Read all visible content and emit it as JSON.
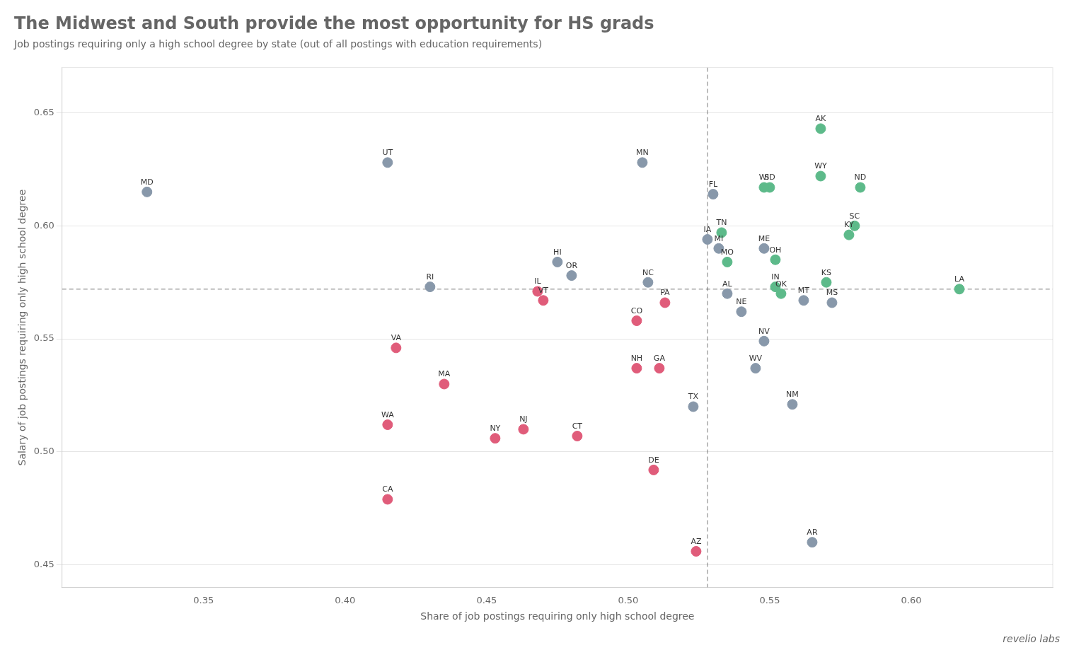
{
  "chart_data": {
    "type": "scatter",
    "title": "The Midwest and South provide the most opportunity for HS grads",
    "subtitle": "Job postings requiring only a high school degree by state (out of all postings with education requirements)",
    "xlabel": "Share of job postings requiring only high school degree",
    "ylabel": "Salary of job postings requiring only high school degree",
    "annotations": [
      "revelio labs"
    ],
    "hlines": [
      0.572
    ],
    "vlines": [
      0.528
    ],
    "point_labels": [
      "MD",
      "UT",
      "RI",
      "VA",
      "WA",
      "MA",
      "CA",
      "NY",
      "NJ",
      "CT",
      "IL",
      "VT",
      "HI",
      "OR",
      "MN",
      "CO",
      "NH",
      "GA",
      "NC",
      "PA",
      "DE",
      "TX",
      "AZ",
      "FL",
      "TN",
      "IA",
      "MI",
      "MO",
      "AL",
      "NE",
      "WV",
      "NV",
      "NM",
      "AR",
      "ME",
      "OH",
      "IN",
      "OK",
      "MT",
      "MS",
      "KS",
      "KY",
      "SC",
      "ND",
      "WY",
      "SD",
      "WI",
      "AK",
      "LA"
    ],
    "x": [
      0.33,
      0.415,
      0.43,
      0.418,
      0.415,
      0.435,
      0.415,
      0.453,
      0.463,
      0.482,
      0.468,
      0.47,
      0.475,
      0.48,
      0.505,
      0.503,
      0.503,
      0.511,
      0.507,
      0.513,
      0.509,
      0.523,
      0.524,
      0.53,
      0.533,
      0.528,
      0.532,
      0.535,
      0.535,
      0.54,
      0.545,
      0.548,
      0.558,
      0.565,
      0.548,
      0.552,
      0.552,
      0.554,
      0.562,
      0.572,
      0.57,
      0.578,
      0.58,
      0.582,
      0.568,
      0.55,
      0.548,
      0.568,
      0.617
    ],
    "values": [
      0.615,
      0.628,
      0.573,
      0.546,
      0.512,
      0.53,
      0.479,
      0.506,
      0.51,
      0.507,
      0.571,
      0.567,
      0.584,
      0.578,
      0.628,
      0.558,
      0.537,
      0.537,
      0.575,
      0.566,
      0.492,
      0.52,
      0.456,
      0.614,
      0.597,
      0.594,
      0.59,
      0.584,
      0.57,
      0.562,
      0.537,
      0.549,
      0.521,
      0.46,
      0.59,
      0.585,
      0.573,
      0.57,
      0.567,
      0.566,
      0.575,
      0.596,
      0.6,
      0.617,
      0.622,
      0.617,
      0.617,
      0.643,
      0.572
    ],
    "colors": [
      "#8898aa",
      "#8898aa",
      "#8898aa",
      "#e05c7a",
      "#e05c7a",
      "#e05c7a",
      "#e05c7a",
      "#e05c7a",
      "#e05c7a",
      "#e05c7a",
      "#e05c7a",
      "#e05c7a",
      "#8898aa",
      "#8898aa",
      "#8898aa",
      "#e05c7a",
      "#e05c7a",
      "#e05c7a",
      "#8898aa",
      "#e05c7a",
      "#e05c7a",
      "#8898aa",
      "#e05c7a",
      "#8898aa",
      "#5dba8a",
      "#8898aa",
      "#8898aa",
      "#5dba8a",
      "#8898aa",
      "#8898aa",
      "#8898aa",
      "#8898aa",
      "#8898aa",
      "#8898aa",
      "#8898aa",
      "#5dba8a",
      "#5dba8a",
      "#5dba8a",
      "#8898aa",
      "#8898aa",
      "#5dba8a",
      "#5dba8a",
      "#5dba8a",
      "#5dba8a",
      "#5dba8a",
      "#5dba8a",
      "#5dba8a",
      "#5dba8a",
      "#5dba8a"
    ],
    "xlim": [
      0.3,
      0.65
    ],
    "ylim": [
      0.44,
      0.67
    ],
    "xticks": [
      0.35,
      {
        "value": 0.4,
        "label": "0.40"
      },
      0.45,
      {
        "value": 0.5,
        "label": "0.50"
      },
      0.55,
      {
        "value": 0.6,
        "label": "0.60"
      }
    ],
    "yticks": [
      0.45,
      {
        "value": 0.5,
        "label": "0.50"
      },
      0.55,
      {
        "value": 0.6,
        "label": "0.60"
      },
      0.65
    ],
    "grid": true
  }
}
